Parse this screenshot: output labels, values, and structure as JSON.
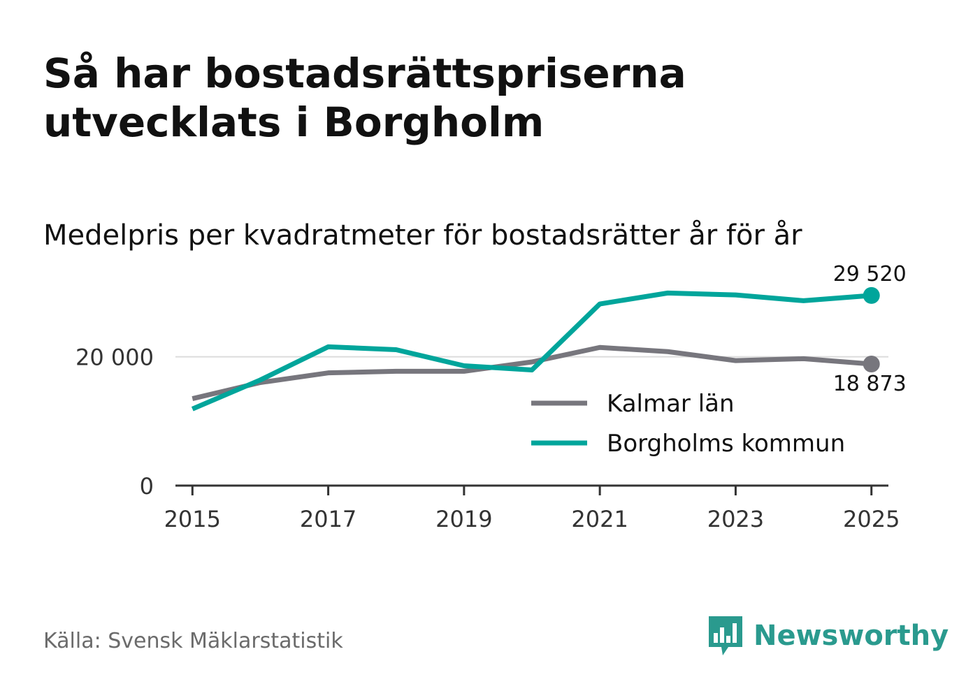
{
  "header": {
    "title": "Så har bostadsrättspriserna utvecklats i Borgholm",
    "subtitle": "Medelpris per kvadratmeter för bostadsrätter år för år"
  },
  "footer": {
    "source": "Källa: Svensk Mäklarstatistik",
    "brand": "Newsworthy",
    "brand_icon": "bar-chart-speech-bubble-icon",
    "brand_color": "#2a9a8e"
  },
  "chart_data": {
    "type": "line",
    "title": "Så har bostadsrättspriserna utvecklats i Borgholm",
    "subtitle": "Medelpris per kvadratmeter för bostadsrätter år för år",
    "xlabel": "",
    "ylabel": "",
    "x": [
      2015,
      2016,
      2017,
      2018,
      2019,
      2020,
      2021,
      2022,
      2023,
      2024,
      2025
    ],
    "xticks": [
      2015,
      2017,
      2019,
      2021,
      2023,
      2025
    ],
    "xlim": [
      2014.75,
      2025.25
    ],
    "yticks": [
      {
        "value": 0,
        "label": "0"
      },
      {
        "value": 20000,
        "label": "20 000"
      }
    ],
    "ylim": [
      0,
      32000
    ],
    "grid": true,
    "legend_position": "center-right",
    "series": [
      {
        "name": "Kalmar län",
        "color": "#77767d",
        "values": [
          13500,
          16000,
          17500,
          17750,
          17750,
          19200,
          21450,
          20800,
          19400,
          19700,
          18873
        ],
        "end_label": "18 873"
      },
      {
        "name": "Borgholms kommun",
        "color": "#00a59b",
        "values": [
          11900,
          16400,
          21550,
          21100,
          18600,
          17950,
          28200,
          29900,
          29600,
          28700,
          29520
        ],
        "end_label": "29 520"
      }
    ]
  }
}
